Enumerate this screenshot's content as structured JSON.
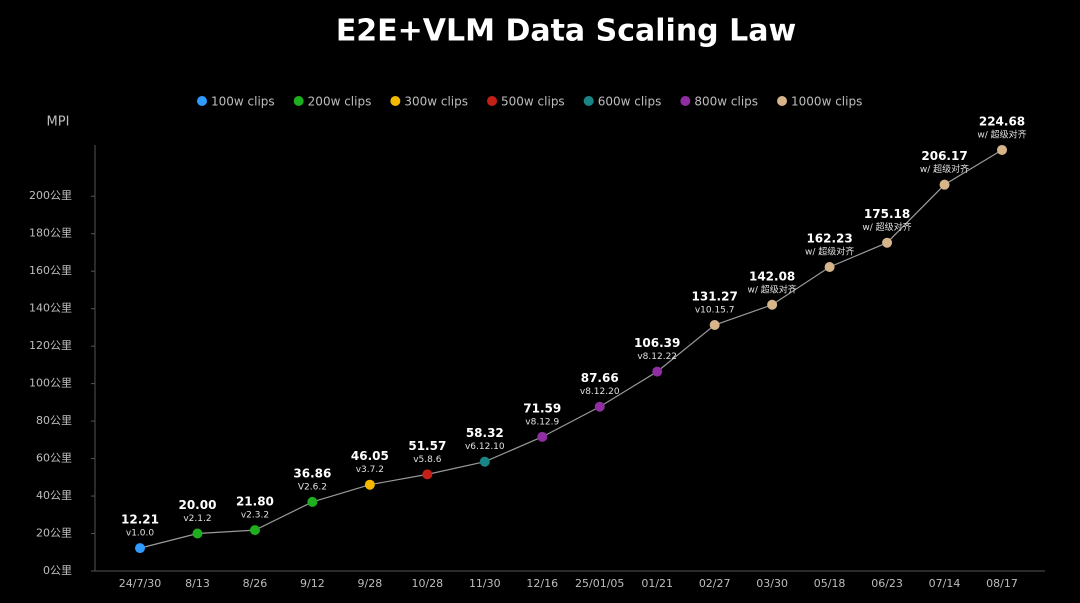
{
  "chart_data": {
    "type": "line",
    "title": "E2E+VLM Data Scaling Law",
    "y_label": "MPI",
    "categories": [
      "24/7/30",
      "8/13",
      "8/26",
      "9/12",
      "9/28",
      "10/28",
      "11/30",
      "12/16",
      "25/01/05",
      "01/21",
      "02/27",
      "03/30",
      "05/18",
      "06/23",
      "07/14",
      "08/17"
    ],
    "series": [
      {
        "values": [
          12.21,
          20.0,
          21.8,
          36.86,
          46.05,
          51.57,
          58.32,
          71.59,
          87.66,
          106.39,
          131.27,
          142.08,
          162.23,
          175.18,
          206.17,
          224.68
        ],
        "value_labels": [
          "12.21",
          "20.00",
          "21.80",
          "36.86",
          "46.05",
          "51.57",
          "58.32",
          "71.59",
          "87.66",
          "106.39",
          "131.27",
          "142.08",
          "162.23",
          "175.18",
          "206.17",
          "224.68"
        ],
        "versions": [
          "v1.0.0",
          "v2.1.2",
          "v2.3.2",
          "V2.6.2",
          "v3.7.2",
          "v5.8.6",
          "v6.12.10",
          "v8.12.9",
          "v8.12.20",
          "v8.12.22",
          "v10.15.7",
          "w/ 超级对齐",
          "w/ 超级对齐",
          "w/ 超级对齐",
          "w/ 超级对齐",
          "w/ 超级对齐"
        ],
        "point_legend": [
          0,
          1,
          1,
          1,
          2,
          3,
          4,
          5,
          5,
          5,
          6,
          6,
          6,
          6,
          6,
          6
        ]
      }
    ],
    "line_color": "#9a9a9a",
    "legend": [
      {
        "name": "100w clips",
        "color": "#2e9bff"
      },
      {
        "name": "200w clips",
        "color": "#1fae1f"
      },
      {
        "name": "300w clips",
        "color": "#f5b800"
      },
      {
        "name": "500w clips",
        "color": "#c42018"
      },
      {
        "name": "600w clips",
        "color": "#1a8585"
      },
      {
        "name": "800w clips",
        "color": "#8e2ea0"
      },
      {
        "name": "1000w clips",
        "color": "#d6b58b"
      }
    ],
    "ylim": [
      0,
      230
    ],
    "yticks": [
      {
        "value": 0,
        "label": "0公里"
      },
      {
        "value": 20,
        "label": "20公里"
      },
      {
        "value": 40,
        "label": "40公里"
      },
      {
        "value": 60,
        "label": "60公里"
      },
      {
        "value": 80,
        "label": "80公里"
      },
      {
        "value": 100,
        "label": "100公里"
      },
      {
        "value": 120,
        "label": "120公里"
      },
      {
        "value": 140,
        "label": "140公里"
      },
      {
        "value": 160,
        "label": "160公里"
      },
      {
        "value": 180,
        "label": "180公里"
      },
      {
        "value": 200,
        "label": "200公里"
      }
    ]
  }
}
